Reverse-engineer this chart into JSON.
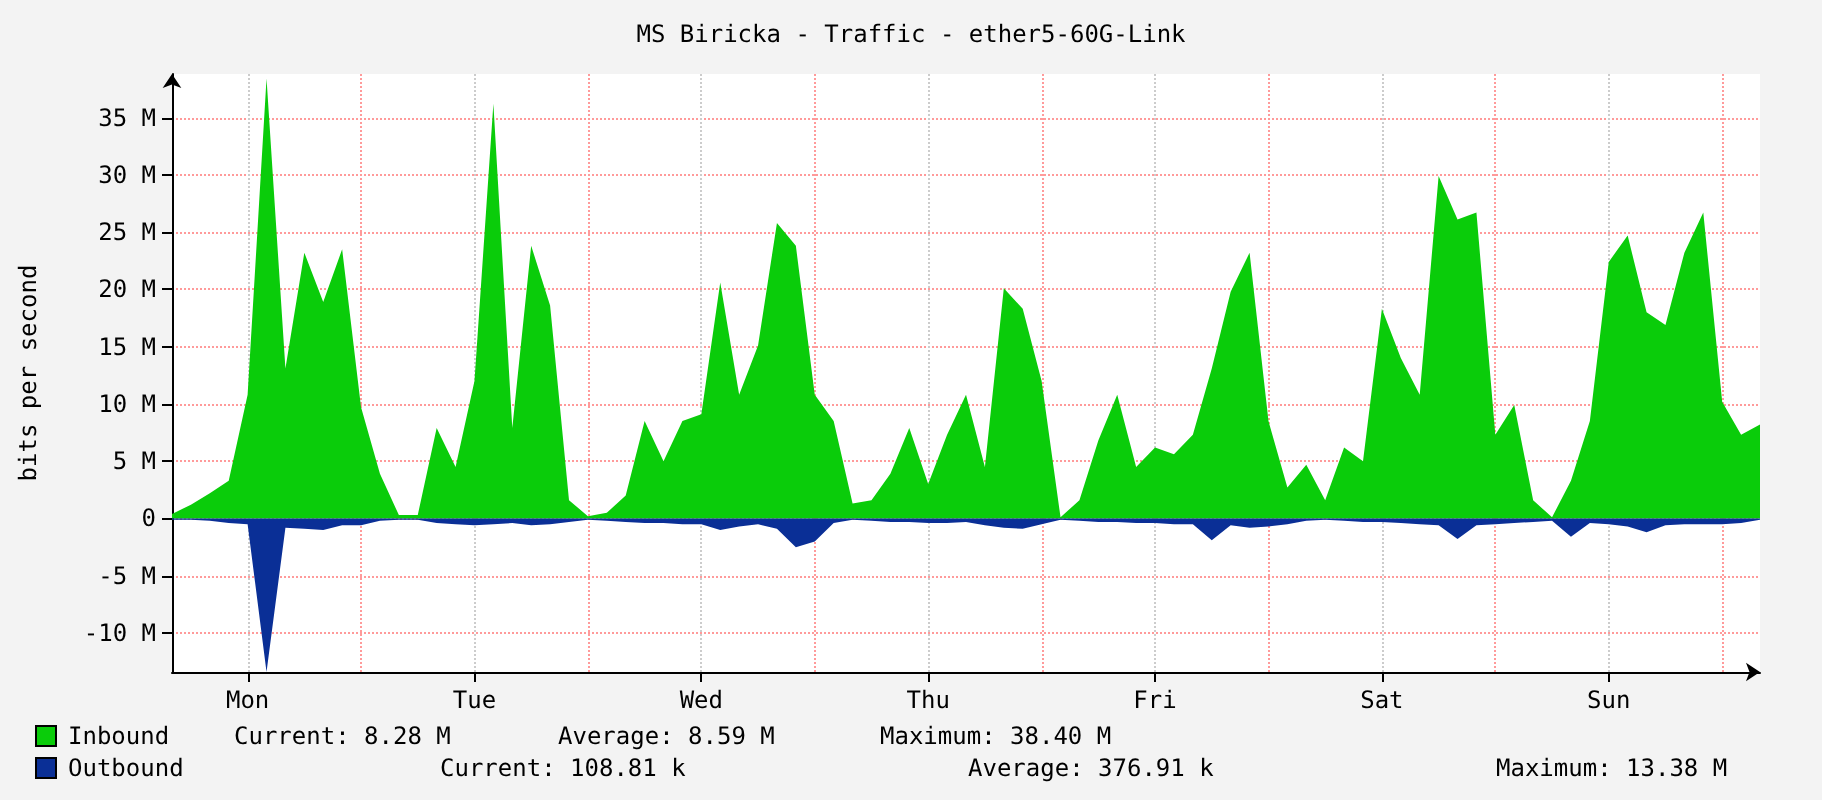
{
  "chart_data": {
    "type": "area",
    "title": "MS Biricka - Traffic - ether5-60G-Link",
    "ylabel": "bits per second",
    "categories": [
      null,
      null,
      null,
      null,
      "Mon",
      null,
      null,
      null,
      null,
      null,
      null,
      null,
      null,
      null,
      null,
      null,
      "Tue",
      null,
      null,
      null,
      null,
      null,
      null,
      null,
      null,
      null,
      null,
      null,
      "Wed",
      null,
      null,
      null,
      null,
      null,
      null,
      null,
      null,
      null,
      null,
      null,
      "Thu",
      null,
      null,
      null,
      null,
      null,
      null,
      null,
      null,
      null,
      null,
      null,
      "Fri",
      null,
      null,
      null,
      null,
      null,
      null,
      null,
      null,
      null,
      null,
      null,
      "Sat",
      null,
      null,
      null,
      null,
      null,
      null,
      null,
      null,
      null,
      null,
      null,
      "Sun",
      null,
      null,
      null,
      null,
      null,
      null,
      null,
      null
    ],
    "ylim": [
      -13.4,
      38.8
    ],
    "yticks": [
      {
        "value": -10,
        "label": "-10 M"
      },
      {
        "value": -5,
        "label": "-5 M"
      },
      0,
      {
        "value": 5,
        "label": "5 M"
      },
      {
        "value": 10,
        "label": "10 M"
      },
      {
        "value": 15,
        "label": "15 M"
      },
      {
        "value": 20,
        "label": "20 M"
      },
      {
        "value": 25,
        "label": "25 M"
      },
      {
        "value": 30,
        "label": "30 M"
      },
      {
        "value": 35,
        "label": "35 M"
      }
    ],
    "grid": true,
    "legend": "bottom left",
    "series": [
      {
        "name": "Inbound",
        "color": "#0acc0a",
        "values": [
          0.4,
          1.2,
          2.2,
          3.3,
          10.8,
          38.4,
          13.1,
          23.2,
          18.9,
          23.5,
          9.7,
          3.9,
          0.3,
          0.3,
          7.9,
          4.5,
          12.0,
          36.2,
          7.9,
          23.8,
          18.6,
          1.6,
          0.2,
          0.5,
          2.0,
          8.5,
          5.0,
          8.5,
          9.1,
          20.6,
          10.8,
          15.1,
          25.8,
          23.8,
          10.8,
          8.5,
          1.3,
          1.6,
          3.9,
          7.9,
          3.0,
          7.3,
          10.8,
          4.5,
          20.1,
          18.3,
          12.0,
          0.1,
          1.6,
          6.8,
          10.8,
          4.5,
          6.2,
          5.6,
          7.3,
          13.1,
          19.8,
          23.2,
          8.5,
          2.7,
          4.7,
          1.6,
          6.2,
          5.0,
          18.3,
          14.0,
          10.8,
          29.9,
          26.1,
          26.7,
          7.3,
          9.9,
          1.6,
          0.1,
          3.3,
          8.5,
          22.4,
          24.7,
          18.0,
          16.9,
          23.2,
          26.7,
          10.2,
          7.3,
          8.2
        ]
      },
      {
        "name": "Outbound",
        "color": "#0a2f96",
        "values": [
          -0.1,
          -0.1,
          -0.2,
          -0.4,
          -0.5,
          -13.4,
          -0.8,
          -0.9,
          -1.0,
          -0.6,
          -0.6,
          -0.2,
          -0.1,
          -0.1,
          -0.4,
          -0.5,
          -0.6,
          -0.5,
          -0.4,
          -0.6,
          -0.5,
          -0.3,
          -0.1,
          -0.2,
          -0.3,
          -0.4,
          -0.4,
          -0.5,
          -0.5,
          -1.0,
          -0.7,
          -0.5,
          -0.9,
          -2.5,
          -2.0,
          -0.4,
          -0.1,
          -0.2,
          -0.3,
          -0.3,
          -0.4,
          -0.4,
          -0.3,
          -0.6,
          -0.8,
          -0.9,
          -0.5,
          -0.1,
          -0.2,
          -0.3,
          -0.3,
          -0.4,
          -0.4,
          -0.5,
          -0.5,
          -1.9,
          -0.6,
          -0.8,
          -0.7,
          -0.5,
          -0.2,
          -0.1,
          -0.2,
          -0.3,
          -0.3,
          -0.4,
          -0.5,
          -0.6,
          -1.8,
          -0.6,
          -0.5,
          -0.4,
          -0.3,
          -0.2,
          -1.6,
          -0.4,
          -0.5,
          -0.7,
          -1.2,
          -0.6,
          -0.5,
          -0.5,
          -0.5,
          -0.4,
          -0.1
        ]
      }
    ],
    "annotations": [
      "Current: 8.28 M",
      "Average: 8.59 M",
      "Maximum: 38.40 M",
      "Current: 108.81 k",
      "Average: 376.91 k",
      "Maximum: 13.38 M"
    ]
  }
}
